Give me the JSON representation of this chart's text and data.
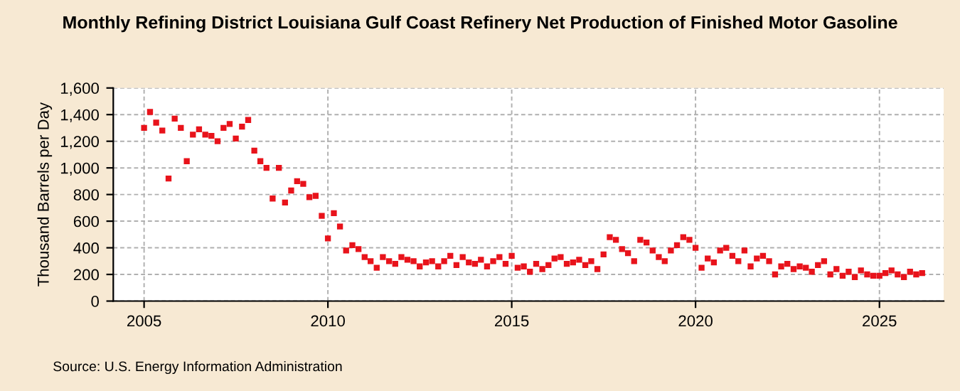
{
  "chart_data": {
    "type": "scatter",
    "title": "Monthly Refining District Louisiana Gulf Coast Refinery Net Production of Finished Motor Gasoline",
    "ylabel": "Thousand Barrels per Day",
    "annotations": [
      "Source: U.S. Energy Information Administration"
    ],
    "x": [
      "2005-01",
      "2005-03",
      "2005-05",
      "2005-07",
      "2005-09",
      "2005-11",
      "2006-01",
      "2006-03",
      "2006-05",
      "2006-07",
      "2006-09",
      "2006-11",
      "2007-01",
      "2007-03",
      "2007-05",
      "2007-07",
      "2007-09",
      "2007-11",
      "2008-01",
      "2008-03",
      "2008-05",
      "2008-07",
      "2008-09",
      "2008-11",
      "2009-01",
      "2009-03",
      "2009-05",
      "2009-07",
      "2009-09",
      "2009-11",
      "2010-01",
      "2010-03",
      "2010-05",
      "2010-07",
      "2010-09",
      "2010-11",
      "2011-01",
      "2011-03",
      "2011-05",
      "2011-07",
      "2011-09",
      "2011-11",
      "2012-01",
      "2012-03",
      "2012-05",
      "2012-07",
      "2012-09",
      "2012-11",
      "2013-01",
      "2013-03",
      "2013-05",
      "2013-07",
      "2013-09",
      "2013-11",
      "2014-01",
      "2014-03",
      "2014-05",
      "2014-07",
      "2014-09",
      "2014-11",
      "2015-01",
      "2015-03",
      "2015-05",
      "2015-07",
      "2015-09",
      "2015-11",
      "2016-01",
      "2016-03",
      "2016-05",
      "2016-07",
      "2016-09",
      "2016-11",
      "2017-01",
      "2017-03",
      "2017-05",
      "2017-07",
      "2017-09",
      "2017-11",
      "2018-01",
      "2018-03",
      "2018-05",
      "2018-07",
      "2018-09",
      "2018-11",
      "2019-01",
      "2019-03",
      "2019-05",
      "2019-07",
      "2019-09",
      "2019-11",
      "2020-01",
      "2020-03",
      "2020-05",
      "2020-07",
      "2020-09",
      "2020-11",
      "2021-01",
      "2021-03",
      "2021-05",
      "2021-07",
      "2021-09",
      "2021-11",
      "2022-01",
      "2022-03",
      "2022-05",
      "2022-07",
      "2022-09",
      "2022-11",
      "2023-01",
      "2023-03",
      "2023-05",
      "2023-07",
      "2023-09",
      "2023-11",
      "2024-01",
      "2024-03",
      "2024-05",
      "2024-07",
      "2024-09",
      "2024-11",
      "2025-01",
      "2025-03",
      "2025-05",
      "2025-07",
      "2025-09",
      "2025-11",
      "2026-01",
      "2026-03"
    ],
    "series": [
      {
        "color": "#e8131b",
        "values": [
          1300,
          1420,
          1340,
          1280,
          920,
          1370,
          1300,
          1050,
          1250,
          1290,
          1250,
          1240,
          1200,
          1300,
          1330,
          1220,
          1310,
          1360,
          1130,
          1050,
          1000,
          770,
          1000,
          740,
          830,
          900,
          880,
          780,
          790,
          640,
          470,
          660,
          560,
          380,
          420,
          390,
          330,
          300,
          250,
          330,
          300,
          280,
          330,
          310,
          300,
          260,
          290,
          300,
          260,
          300,
          340,
          270,
          330,
          290,
          280,
          310,
          260,
          300,
          330,
          280,
          340,
          250,
          260,
          220,
          280,
          240,
          270,
          320,
          330,
          280,
          290,
          310,
          270,
          300,
          240,
          350,
          480,
          460,
          390,
          360,
          300,
          460,
          440,
          380,
          330,
          300,
          380,
          420,
          480,
          460,
          400,
          250,
          320,
          290,
          380,
          400,
          340,
          300,
          380,
          260,
          320,
          340,
          300,
          200,
          260,
          280,
          240,
          260,
          250,
          220,
          270,
          300,
          200,
          240,
          190,
          220,
          180,
          230,
          200,
          190,
          190,
          210,
          230,
          200,
          180,
          220,
          200,
          210
        ]
      }
    ],
    "xlim": [
      "2004-03",
      "2026-10"
    ],
    "xticks": [
      {
        "value": "2005-01",
        "label": "2005"
      },
      {
        "value": "2010-01",
        "label": "2010"
      },
      {
        "value": "2015-01",
        "label": "2015"
      },
      {
        "value": "2020-01",
        "label": "2020"
      },
      {
        "value": "2025-01",
        "label": "2025"
      }
    ],
    "ylim": [
      0,
      1600
    ],
    "yticks": [
      {
        "value": 0,
        "label": "0"
      },
      {
        "value": 200,
        "label": "200"
      },
      {
        "value": 400,
        "label": "400"
      },
      {
        "value": 600,
        "label": "600"
      },
      {
        "value": 800,
        "label": "800"
      },
      {
        "value": 1000,
        "label": "1,000"
      },
      {
        "value": 1200,
        "label": "1,200"
      },
      {
        "value": 1400,
        "label": "1,400"
      },
      {
        "value": 1600,
        "label": "1,600"
      }
    ],
    "grid": true,
    "marker": "square"
  }
}
